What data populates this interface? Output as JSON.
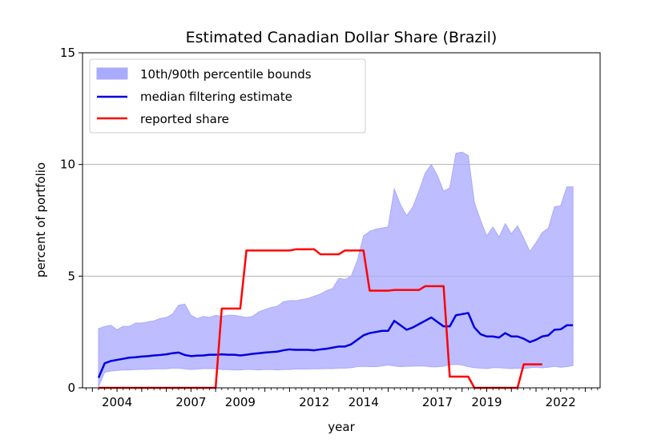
{
  "chart_data": {
    "type": "area",
    "title": "Estimated Canadian Dollar Share (Brazil)",
    "xlabel": "year",
    "ylabel": "percent of portfolio",
    "xlim": [
      2002.6,
      2023.6
    ],
    "ylim": [
      0,
      15
    ],
    "x_ticks": [
      2004,
      2007,
      2009,
      2012,
      2014,
      2017,
      2019,
      2022
    ],
    "y_ticks": [
      0,
      5,
      10,
      15
    ],
    "grid": "horizontal",
    "legend_position": "top-left",
    "colors": {
      "band": "#aaaaff",
      "median": "#0000dd",
      "reported": "#ff0000",
      "grid": "#b0b0b0"
    },
    "series": [
      {
        "name": "10th/90th percentile bounds",
        "kind": "band",
        "x": [
          2003.25,
          2003.5,
          2003.75,
          2004.0,
          2004.25,
          2004.5,
          2004.75,
          2005.0,
          2005.25,
          2005.5,
          2005.75,
          2006.0,
          2006.25,
          2006.5,
          2006.75,
          2007.0,
          2007.25,
          2007.5,
          2007.75,
          2008.0,
          2008.25,
          2008.5,
          2008.75,
          2009.0,
          2009.25,
          2009.5,
          2009.75,
          2010.0,
          2010.25,
          2010.5,
          2010.75,
          2011.0,
          2011.25,
          2011.5,
          2011.75,
          2012.0,
          2012.25,
          2012.5,
          2012.75,
          2013.0,
          2013.25,
          2013.5,
          2013.75,
          2014.0,
          2014.25,
          2014.5,
          2014.75,
          2015.0,
          2015.25,
          2015.5,
          2015.75,
          2016.0,
          2016.25,
          2016.5,
          2016.75,
          2017.0,
          2017.25,
          2017.5,
          2017.75,
          2018.0,
          2018.25,
          2018.5,
          2018.75,
          2019.0,
          2019.25,
          2019.5,
          2019.75,
          2020.0,
          2020.25,
          2020.5,
          2020.75,
          2021.0,
          2021.25,
          2021.5,
          2021.75,
          2022.0,
          2022.25,
          2022.5
        ],
        "lower": [
          0.05,
          0.7,
          0.75,
          0.78,
          0.8,
          0.8,
          0.82,
          0.83,
          0.83,
          0.85,
          0.85,
          0.85,
          0.88,
          0.88,
          0.85,
          0.82,
          0.84,
          0.86,
          0.86,
          0.85,
          0.82,
          0.82,
          0.8,
          0.8,
          0.83,
          0.82,
          0.8,
          0.82,
          0.82,
          0.8,
          0.82,
          0.82,
          0.84,
          0.84,
          0.84,
          0.85,
          0.85,
          0.86,
          0.86,
          0.88,
          0.88,
          0.9,
          0.95,
          0.96,
          0.95,
          0.95,
          0.98,
          1.02,
          0.98,
          0.95,
          0.96,
          0.97,
          0.98,
          0.97,
          0.94,
          0.94,
          0.97,
          1.03,
          1.05,
          1.02,
          0.95,
          0.9,
          0.88,
          0.86,
          0.9,
          0.9,
          0.88,
          0.86,
          0.88,
          0.86,
          0.9,
          0.92,
          0.9,
          0.92,
          0.96,
          0.92,
          0.95,
          1.0
        ],
        "upper": [
          2.65,
          2.75,
          2.8,
          2.6,
          2.75,
          2.75,
          2.9,
          2.9,
          2.95,
          3.0,
          3.1,
          3.15,
          3.3,
          3.7,
          3.75,
          3.25,
          3.1,
          3.2,
          3.15,
          3.25,
          3.2,
          3.25,
          3.25,
          3.2,
          3.15,
          3.2,
          3.4,
          3.5,
          3.6,
          3.65,
          3.85,
          3.9,
          3.9,
          3.95,
          4.0,
          4.1,
          4.2,
          4.35,
          4.45,
          4.9,
          4.85,
          5.0,
          5.7,
          6.8,
          7.0,
          7.1,
          7.15,
          7.2,
          8.9,
          8.2,
          7.7,
          8.1,
          8.8,
          9.6,
          10.0,
          9.5,
          8.8,
          8.95,
          10.5,
          10.55,
          10.4,
          8.3,
          7.5,
          6.8,
          7.2,
          6.75,
          7.35,
          6.9,
          7.25,
          6.7,
          6.1,
          6.5,
          6.95,
          7.15,
          8.1,
          8.15,
          9.0,
          9.0
        ]
      },
      {
        "name": "median filtering estimate",
        "kind": "line",
        "x": [
          2003.25,
          2003.5,
          2003.75,
          2004.0,
          2004.25,
          2004.5,
          2004.75,
          2005.0,
          2005.25,
          2005.5,
          2005.75,
          2006.0,
          2006.25,
          2006.5,
          2006.75,
          2007.0,
          2007.25,
          2007.5,
          2007.75,
          2008.0,
          2008.25,
          2008.5,
          2008.75,
          2009.0,
          2009.25,
          2009.5,
          2009.75,
          2010.0,
          2010.25,
          2010.5,
          2010.75,
          2011.0,
          2011.25,
          2011.5,
          2011.75,
          2012.0,
          2012.25,
          2012.5,
          2012.75,
          2013.0,
          2013.25,
          2013.5,
          2013.75,
          2014.0,
          2014.25,
          2014.5,
          2014.75,
          2015.0,
          2015.25,
          2015.5,
          2015.75,
          2016.0,
          2016.25,
          2016.5,
          2016.75,
          2017.0,
          2017.25,
          2017.5,
          2017.75,
          2018.0,
          2018.25,
          2018.5,
          2018.75,
          2019.0,
          2019.25,
          2019.5,
          2019.75,
          2020.0,
          2020.25,
          2020.5,
          2020.75,
          2021.0,
          2021.25,
          2021.5,
          2021.75,
          2022.0,
          2022.25,
          2022.5
        ],
        "values": [
          0.45,
          1.1,
          1.2,
          1.25,
          1.3,
          1.35,
          1.37,
          1.4,
          1.42,
          1.45,
          1.47,
          1.5,
          1.55,
          1.58,
          1.47,
          1.42,
          1.44,
          1.45,
          1.48,
          1.48,
          1.5,
          1.48,
          1.48,
          1.45,
          1.48,
          1.52,
          1.55,
          1.58,
          1.6,
          1.62,
          1.68,
          1.72,
          1.7,
          1.7,
          1.7,
          1.68,
          1.72,
          1.75,
          1.8,
          1.85,
          1.85,
          1.95,
          2.15,
          2.35,
          2.45,
          2.5,
          2.55,
          2.55,
          3.0,
          2.8,
          2.6,
          2.7,
          2.85,
          3.0,
          3.15,
          2.95,
          2.75,
          2.75,
          3.25,
          3.3,
          3.35,
          2.7,
          2.4,
          2.3,
          2.3,
          2.25,
          2.45,
          2.3,
          2.3,
          2.2,
          2.05,
          2.15,
          2.3,
          2.35,
          2.6,
          2.62,
          2.8,
          2.8
        ]
      },
      {
        "name": "reported share",
        "kind": "line",
        "x": [
          2003.25,
          2008.0,
          2008.25,
          2009.0,
          2009.25,
          2011.0,
          2011.25,
          2012.0,
          2012.25,
          2013.0,
          2013.25,
          2014.0,
          2014.25,
          2015.0,
          2015.25,
          2016.25,
          2016.5,
          2017.25,
          2017.5,
          2018.25,
          2018.5,
          2020.25,
          2020.5,
          2021.25
        ],
        "values": [
          0,
          0,
          3.55,
          3.55,
          6.15,
          6.15,
          6.2,
          6.2,
          5.98,
          5.98,
          6.15,
          6.15,
          4.35,
          4.35,
          4.38,
          4.38,
          4.55,
          4.55,
          0.5,
          0.5,
          0,
          0,
          1.05,
          1.05
        ]
      }
    ]
  }
}
